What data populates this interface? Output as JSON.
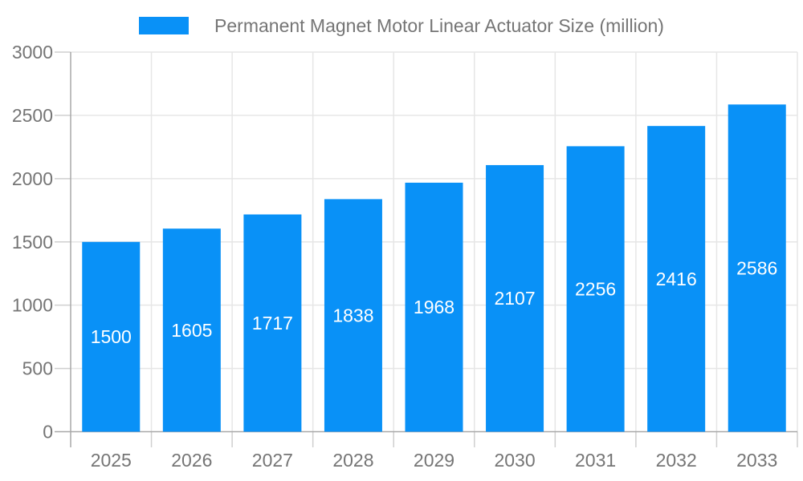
{
  "chart_data": {
    "type": "bar",
    "title": "Permanent Magnet Motor Linear Actuator Size (million)",
    "categories": [
      "2025",
      "2026",
      "2027",
      "2028",
      "2029",
      "2030",
      "2031",
      "2032",
      "2033"
    ],
    "series": [
      {
        "name": "Permanent Magnet Motor Linear Actuator Size (million)",
        "values": [
          1500,
          1605,
          1717,
          1838,
          1968,
          2107,
          2256,
          2416,
          2586
        ]
      }
    ],
    "xlabel": "",
    "ylabel": "",
    "ylim": [
      0,
      3000
    ],
    "y_ticks": [
      0,
      500,
      1000,
      1500,
      2000,
      2500,
      3000
    ],
    "grid": true,
    "legend_position": "top",
    "value_labels": "inside-center-white",
    "colors": {
      "bar": "#0991F7",
      "bar_value_text": "#FFFFFF",
      "axis_text": "#757575",
      "legend_text": "#757575",
      "grid_line": "#E6E6E6",
      "tick_line": "#CFCFCF",
      "axis_line": "#A8A8A8",
      "background": "#FFFFFF"
    }
  }
}
